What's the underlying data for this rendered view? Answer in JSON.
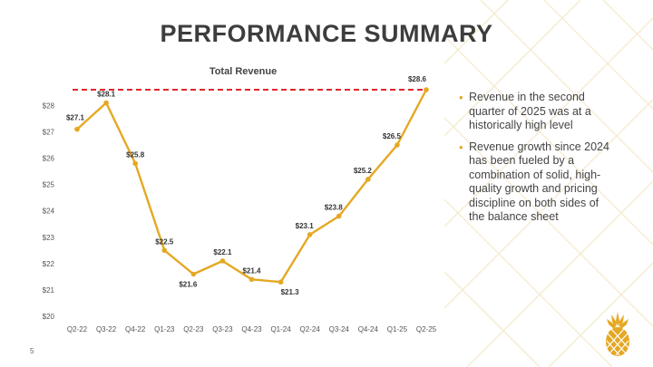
{
  "slide": {
    "title": "PERFORMANCE SUMMARY",
    "page_number": "5",
    "bullets": [
      "Revenue in the second quarter of 2025 was at a historically high level",
      "Revenue growth since 2024 has been fueled by a combination of solid, high-quality growth and pricing discipline on both sides of the balance sheet"
    ],
    "logo_icon": "pineapple-icon"
  },
  "colors": {
    "line": "#e5a823",
    "reference_line": "#e0262c",
    "title": "#3d3d3d",
    "decoration": "#f6ecd2"
  },
  "chart_data": {
    "type": "line",
    "title": "Total Revenue",
    "categories": [
      "Q2-22",
      "Q3-22",
      "Q4-22",
      "Q1-23",
      "Q2-23",
      "Q3-23",
      "Q4-23",
      "Q1-24",
      "Q2-24",
      "Q3-24",
      "Q4-24",
      "Q1-25",
      "Q2-25"
    ],
    "series": [
      {
        "name": "Total Revenue",
        "values": [
          27.1,
          28.1,
          25.8,
          22.5,
          21.6,
          22.1,
          21.4,
          21.3,
          23.1,
          23.8,
          25.2,
          26.5,
          28.6
        ],
        "labels": [
          "$27.1",
          "$28.1",
          "$25.8",
          "$22.5",
          "$21.6",
          "$22.1",
          "$21.4",
          "$21.3",
          "$23.1",
          "$23.8",
          "$25.2",
          "$26.5",
          "$28.6"
        ]
      }
    ],
    "y_ticks": [
      20,
      21,
      22,
      23,
      24,
      25,
      26,
      27,
      28
    ],
    "y_tick_labels": [
      "$20",
      "$21",
      "$22",
      "$23",
      "$24",
      "$25",
      "$26",
      "$27",
      "$28"
    ],
    "ylim": [
      20,
      28.6
    ],
    "reference_line_value": 28.6,
    "grid": false,
    "xlabel": "",
    "ylabel": ""
  }
}
